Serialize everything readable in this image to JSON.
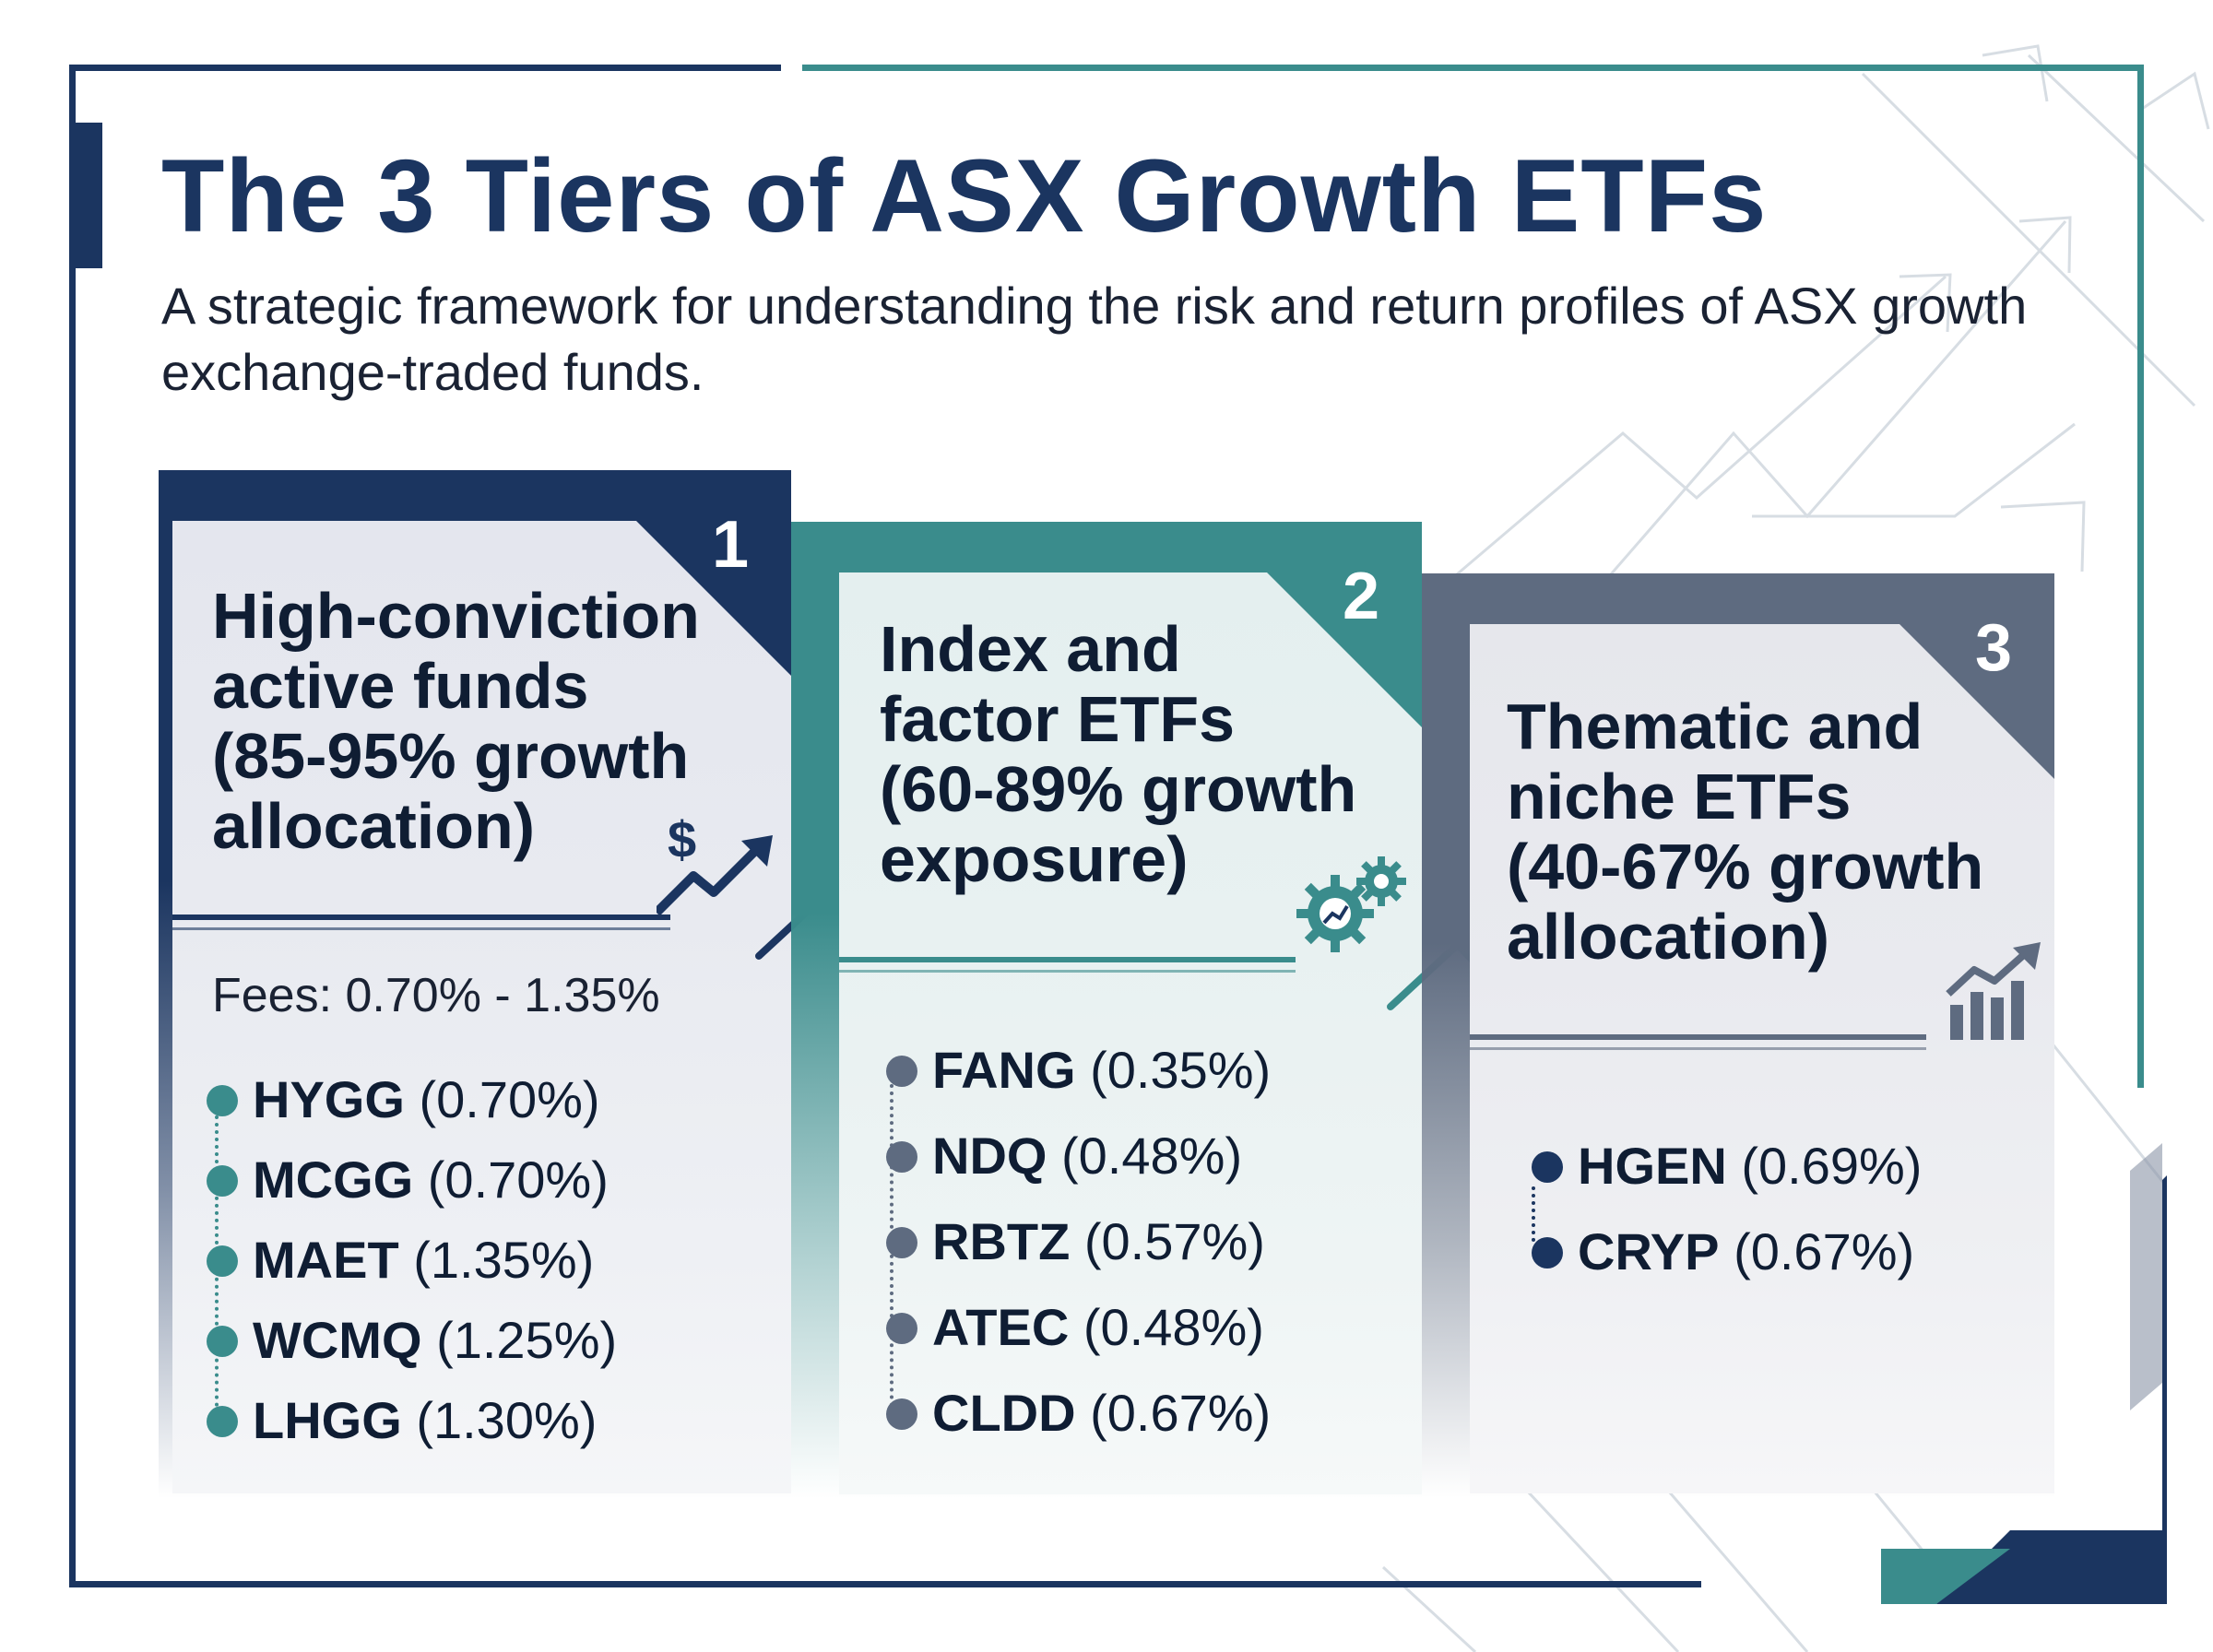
{
  "header": {
    "title": "The 3 Tiers of ASX Growth ETFs",
    "subtitle": "A strategic framework for understanding the risk and return profiles of ASX growth exchange-traded funds."
  },
  "colors": {
    "navy": "#1b3560",
    "teal": "#3a8c8c",
    "slate": "#5e6b80",
    "text": "#0f1d33"
  },
  "tiers": [
    {
      "number": "1",
      "title": "High-conviction active funds",
      "detail": "(85-95% growth allocation)",
      "fees": "Fees: 0.70% - 1.35%",
      "icon": "dollar-growth-arrow-icon",
      "color": "#1b3560",
      "dot_color": "#3a8c8c",
      "funds": [
        {
          "ticker": "HYGG",
          "fee": "(0.70%)"
        },
        {
          "ticker": "MCGG",
          "fee": "(0.70%)"
        },
        {
          "ticker": "MAET",
          "fee": "(1.35%)"
        },
        {
          "ticker": "WCMQ",
          "fee": "(1.25%)"
        },
        {
          "ticker": "LHGG",
          "fee": "(1.30%)"
        }
      ]
    },
    {
      "number": "2",
      "title": "Index and factor ETFs",
      "detail": "(60-89% growth exposure)",
      "icon": "gears-icon",
      "color": "#3a8c8c",
      "dot_color": "#5e6b80",
      "funds": [
        {
          "ticker": "FANG",
          "fee": "(0.35%)"
        },
        {
          "ticker": "NDQ",
          "fee": "(0.48%)"
        },
        {
          "ticker": "RBTZ",
          "fee": "(0.57%)"
        },
        {
          "ticker": "ATEC",
          "fee": "(0.48%)"
        },
        {
          "ticker": "CLDD",
          "fee": "(0.67%)"
        }
      ]
    },
    {
      "number": "3",
      "title": "Thematic and niche ETFs",
      "detail": "(40-67% growth allocation)",
      "icon": "bar-chart-growth-icon",
      "color": "#5e6b80",
      "dot_color": "#1b3560",
      "funds": [
        {
          "ticker": "HGEN",
          "fee": "(0.69%)"
        },
        {
          "ticker": "CRYP",
          "fee": "(0.67%)"
        }
      ]
    }
  ]
}
